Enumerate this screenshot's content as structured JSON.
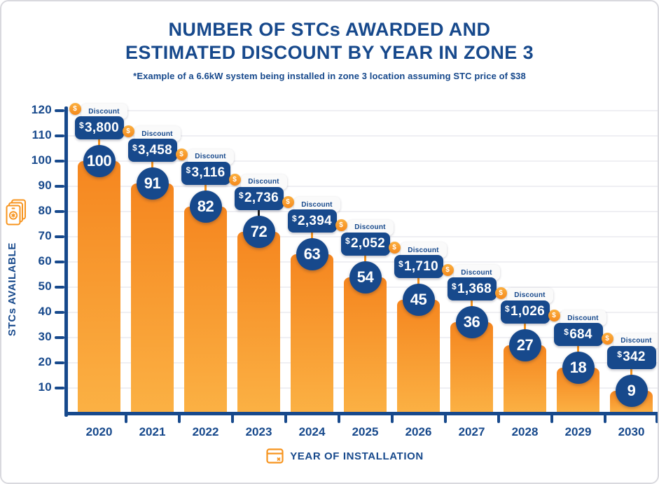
{
  "colors": {
    "navy": "#17498C",
    "bar_top": "#F5861F",
    "bar_bottom": "#FBB144",
    "coin": "#F7941E",
    "connector": "#F7941D",
    "grid": "#EFEFF3",
    "badge_bg": "#FAFAFA",
    "icon_orange": "#F7941E"
  },
  "chart_data": {
    "type": "bar",
    "title_lines": [
      "NUMBER OF STCs AWARDED AND",
      "ESTIMATED DISCOUNT BY YEAR IN ZONE 3"
    ],
    "subtitle": "*Example of a 6.6kW system being installed in zone 3 location assuming STC price of $38",
    "xlabel": "YEAR OF INSTALLATION",
    "ylabel": "STCs AVAILABLE",
    "categories": [
      "2020",
      "2021",
      "2022",
      "2023",
      "2024",
      "2025",
      "2026",
      "2027",
      "2028",
      "2029",
      "2030"
    ],
    "values": [
      100,
      91,
      82,
      72,
      63,
      54,
      45,
      36,
      27,
      18,
      9
    ],
    "discount_label": "Discount",
    "discounts": [
      "$3,800",
      "$3,458",
      "$3,116",
      "$2,736",
      "$2,394",
      "$2,052",
      "$1,710",
      "$1,368",
      "$1,026",
      "$684",
      "$342"
    ],
    "coin_symbol": "$",
    "ylim": [
      0,
      120
    ],
    "ytick_step": 10,
    "grid": true,
    "legend": "none",
    "connector_overrides": {
      "3": "#1C1C1C"
    }
  }
}
